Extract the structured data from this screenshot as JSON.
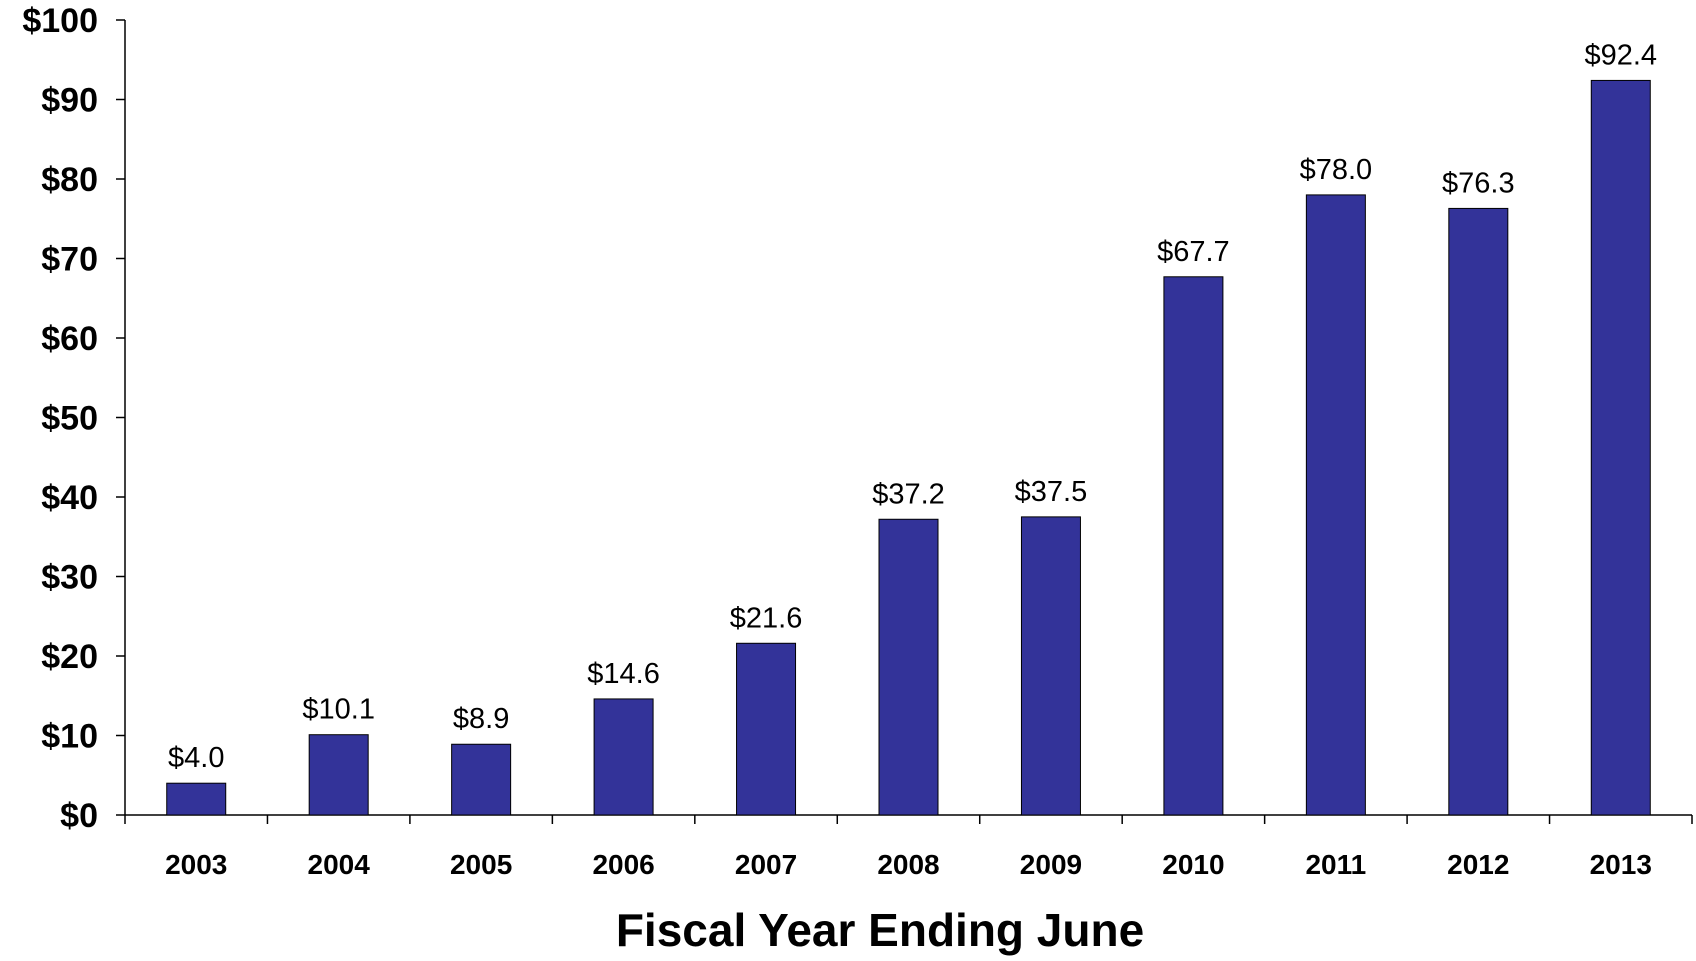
{
  "chart_data": {
    "type": "bar",
    "title": "",
    "xlabel": "Fiscal Year Ending June",
    "ylabel": "",
    "categories": [
      "2003",
      "2004",
      "2005",
      "2006",
      "2007",
      "2008",
      "2009",
      "2010",
      "2011",
      "2012",
      "2013"
    ],
    "values": [
      4.0,
      10.1,
      8.9,
      14.6,
      21.6,
      37.2,
      37.5,
      67.7,
      78.0,
      76.3,
      92.4
    ],
    "data_labels": [
      "$4.0",
      "$10.1",
      "$8.9",
      "$14.6",
      "$21.6",
      "$37.2",
      "$37.5",
      "$67.7",
      "$78.0",
      "$76.3",
      "$92.4"
    ],
    "ylim": [
      0,
      100
    ],
    "yticks": [
      0,
      10,
      20,
      30,
      40,
      50,
      60,
      70,
      80,
      90,
      100
    ],
    "ytick_labels": [
      "$0",
      "$10",
      "$20",
      "$30",
      "$40",
      "$50",
      "$60",
      "$70",
      "$80",
      "$90",
      "$100"
    ],
    "grid": false,
    "legend": "none",
    "bar_color": "#333399",
    "axis_color": "#000000"
  }
}
